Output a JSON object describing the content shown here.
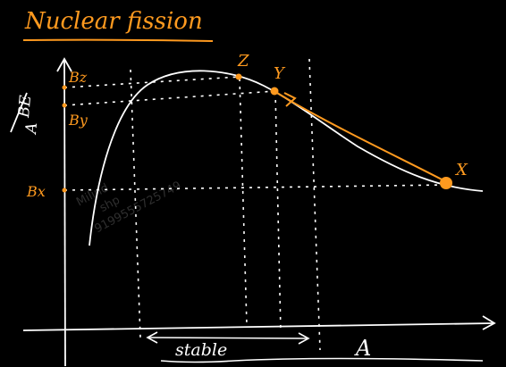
{
  "title": "Nuclear fission",
  "y_axis_label_top": "BE",
  "y_axis_label_bottom": "A",
  "x_axis_label": "A",
  "points": {
    "z": "Z",
    "y": "Y",
    "x": "X"
  },
  "y_ticks": {
    "bz": "Bz",
    "by": "By",
    "bx": "Bx"
  },
  "range_label": "stable",
  "watermark": {
    "line1": "Milind",
    "line2": "shp",
    "line3": "9199555725749"
  },
  "colors": {
    "background": "#000000",
    "chalk": "#ffffff",
    "accent": "#ff9a1f"
  }
}
